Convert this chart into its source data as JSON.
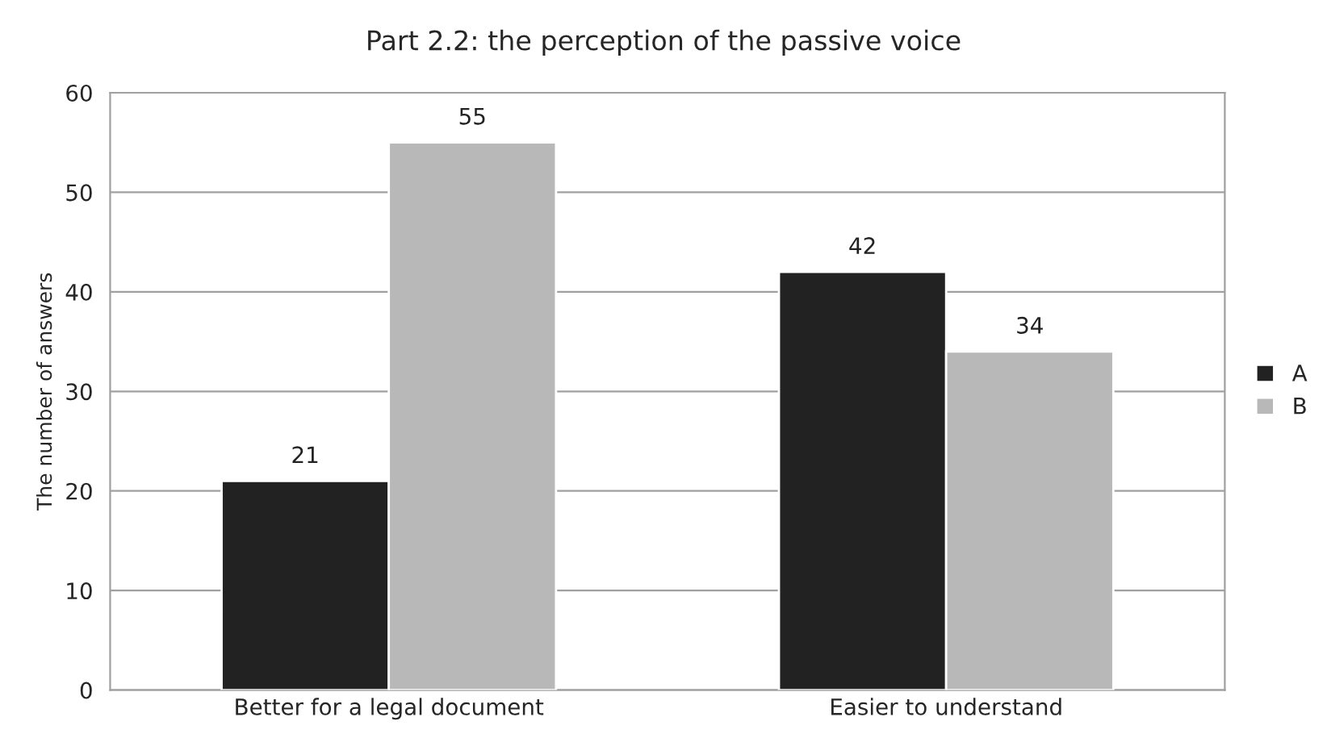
{
  "chart_data": {
    "type": "bar",
    "title": "Part 2.2: the perception of the passive voice",
    "ylabel": "The number of answers",
    "categories": [
      "Better for a legal document",
      "Easier to understand"
    ],
    "series": [
      {
        "name": "A",
        "color": "#222222",
        "values": [
          21,
          42
        ]
      },
      {
        "name": "B",
        "color": "#b8b8b8",
        "values": [
          55,
          34
        ]
      }
    ],
    "ylim": [
      0,
      60
    ],
    "yticks": [
      0,
      10,
      20,
      30,
      40,
      50,
      60
    ],
    "grid": "y",
    "legend": "right",
    "data_labels": true
  }
}
